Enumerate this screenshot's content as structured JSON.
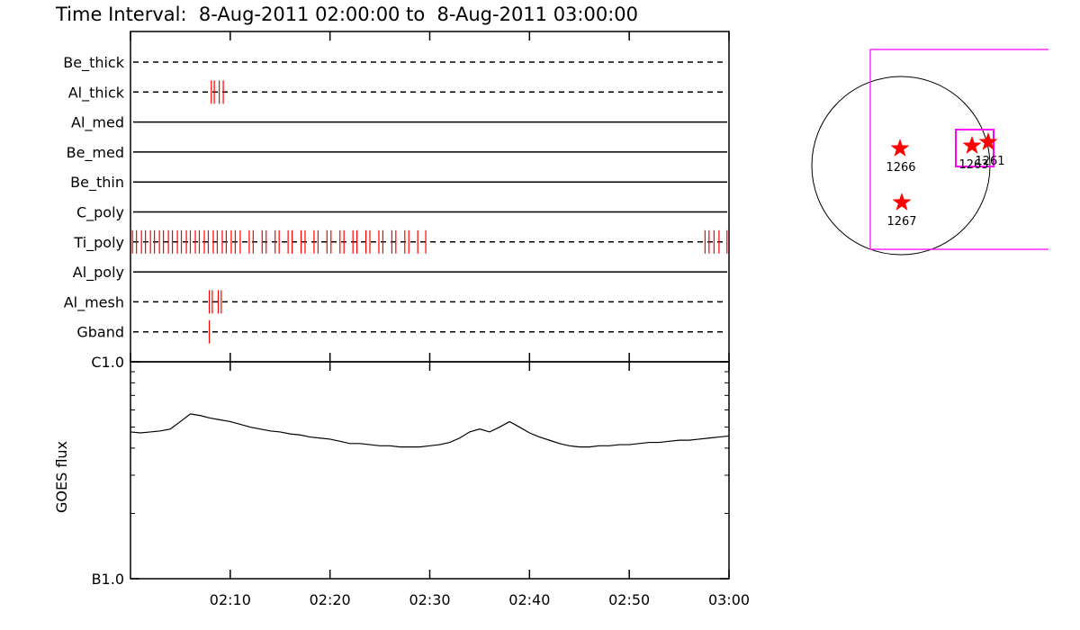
{
  "chart_data": [
    {
      "type": "timeline",
      "title": "Time Interval:  8-Aug-2011 02:00:00 to  8-Aug-2011 03:00:00",
      "xlim": [
        0,
        60
      ],
      "xticks": [
        0,
        10,
        20,
        30,
        40,
        50,
        60
      ],
      "event_color": "#ff0000",
      "rows": [
        {
          "name": "Be_thick",
          "style": "dashed",
          "events": []
        },
        {
          "name": "Al_thick",
          "style": "dashed",
          "events": [
            8.1,
            8.4,
            8.9,
            9.3
          ]
        },
        {
          "name": "Al_med",
          "style": "solid",
          "events": []
        },
        {
          "name": "Be_med",
          "style": "solid",
          "events": []
        },
        {
          "name": "Be_thin",
          "style": "solid",
          "events": []
        },
        {
          "name": "C_poly",
          "style": "solid",
          "events": []
        },
        {
          "name": "Ti_poly",
          "style": "dashed",
          "events": [
            0.2,
            0.6,
            1.1,
            1.5,
            2.0,
            2.4,
            2.9,
            3.3,
            3.8,
            4.2,
            4.7,
            5.1,
            5.6,
            6.0,
            6.5,
            6.9,
            7.4,
            7.8,
            8.3,
            8.7,
            9.2,
            9.6,
            10.1,
            10.5,
            11.0,
            11.9,
            12.3,
            13.2,
            13.6,
            14.5,
            14.9,
            15.8,
            16.2,
            17.1,
            17.5,
            18.4,
            18.8,
            19.7,
            20.1,
            21.0,
            21.4,
            22.3,
            22.7,
            23.6,
            24.0,
            24.9,
            25.3,
            26.2,
            26.6,
            27.5,
            27.9,
            28.8,
            29.6,
            57.6,
            58.0,
            58.5,
            59.0,
            59.8
          ]
        },
        {
          "name": "Al_poly",
          "style": "solid",
          "events": []
        },
        {
          "name": "Al_mesh",
          "style": "dashed",
          "events": [
            7.9,
            8.2,
            8.8,
            9.1
          ]
        },
        {
          "name": "Gband",
          "style": "dashed",
          "events": [
            7.9
          ]
        }
      ]
    },
    {
      "type": "line",
      "y_label": "GOES flux",
      "log_y": true,
      "color": "#000000",
      "x": [
        0,
        1,
        2,
        3,
        4,
        5,
        6,
        7,
        8,
        9,
        10,
        11,
        12,
        13,
        14,
        15,
        16,
        17,
        18,
        19,
        20,
        21,
        22,
        23,
        24,
        25,
        26,
        27,
        28,
        29,
        30,
        31,
        32,
        33,
        34,
        35,
        36,
        37,
        38,
        39,
        40,
        41,
        42,
        43,
        44,
        45,
        46,
        47,
        48,
        49,
        50,
        51,
        52,
        53,
        54,
        55,
        56,
        57,
        58,
        59,
        60
      ],
      "values": [
        4.75e-06,
        4.7e-06,
        4.75e-06,
        4.8e-06,
        4.9e-06,
        5.3e-06,
        5.75e-06,
        5.65e-06,
        5.5e-06,
        5.4e-06,
        5.3e-06,
        5.15e-06,
        5e-06,
        4.9e-06,
        4.8e-06,
        4.75e-06,
        4.65e-06,
        4.6e-06,
        4.5e-06,
        4.45e-06,
        4.4e-06,
        4.3e-06,
        4.2e-06,
        4.2e-06,
        4.15e-06,
        4.1e-06,
        4.1e-06,
        4.05e-06,
        4.05e-06,
        4.05e-06,
        4.1e-06,
        4.15e-06,
        4.25e-06,
        4.45e-06,
        4.75e-06,
        4.9e-06,
        4.75e-06,
        5e-06,
        5.3e-06,
        5e-06,
        4.7e-06,
        4.5e-06,
        4.35e-06,
        4.2e-06,
        4.1e-06,
        4.05e-06,
        4.05e-06,
        4.1e-06,
        4.1e-06,
        4.15e-06,
        4.15e-06,
        4.2e-06,
        4.25e-06,
        4.25e-06,
        4.3e-06,
        4.35e-06,
        4.35e-06,
        4.4e-06,
        4.45e-06,
        4.5e-06,
        4.55e-06
      ],
      "xlim": [
        0,
        60
      ],
      "xticks": [
        {
          "value": 10,
          "label": "02:10"
        },
        {
          "value": 20,
          "label": "02:20"
        },
        {
          "value": 30,
          "label": "02:30"
        },
        {
          "value": 40,
          "label": "02:40"
        },
        {
          "value": 50,
          "label": "02:50"
        },
        {
          "value": 60,
          "label": "03:00"
        }
      ],
      "ylim": [
        1e-06,
        1e-05
      ],
      "yticks": [
        {
          "value": 1e-06,
          "label": "B1.0"
        },
        {
          "value": 1e-05,
          "label": "C1.0"
        }
      ],
      "minor_yticks": [
        2e-06,
        3e-06,
        4e-06,
        5e-06,
        6e-06,
        7e-06,
        8e-06,
        9e-06
      ]
    },
    {
      "type": "sun_map",
      "region_color": "#ff0000",
      "box_color": "#ff00ff",
      "regions": [
        {
          "label": "1266"
        },
        {
          "label": "1267"
        },
        {
          "label": "1263"
        },
        {
          "label": "1261"
        }
      ]
    }
  ]
}
